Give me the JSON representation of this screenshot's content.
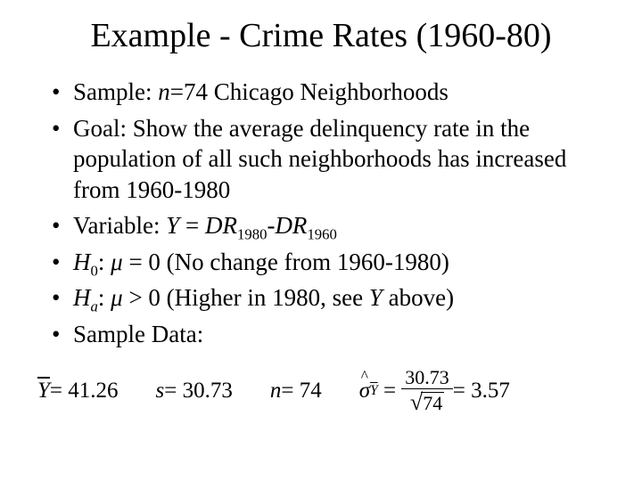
{
  "title": "Example - Crime Rates (1960-80)",
  "bullets": {
    "b1_pre": "Sample: ",
    "b1_var": "n",
    "b1_post": "=74 Chicago Neighborhoods",
    "b2": "Goal: Show the average delinquency rate in the population of all such neighborhoods has increased from 1960-1980",
    "b3_pre": "Variable: ",
    "b3_Y": "Y",
    "b3_eq": " = ",
    "b3_DR1": "DR",
    "b3_sub1": "1980",
    "b3_minus": "-",
    "b3_DR2": "DR",
    "b3_sub2": "1960",
    "b4_H": "H",
    "b4_sub": "0",
    "b4_colon": ": ",
    "b4_mu": "μ",
    "b4_rest": " = 0 (No change from 1960-1980)",
    "b5_H": "H",
    "b5_sub": "a",
    "b5_colon": ": ",
    "b5_mu": "μ",
    "b5_rest": " > 0 (Higher in 1980, see ",
    "b5_Y": "Y",
    "b5_end": " above)",
    "b6": "Sample Data:"
  },
  "equations": {
    "ybar": "Y",
    "ybar_val": " = 41.26",
    "s_var": "s",
    "s_val": " = 30.73",
    "n_var": "n",
    "n_val": " = 74",
    "sigma": "σ",
    "sig_sub": "Y",
    "frac_num": "30.73",
    "rad_val": "74",
    "eq_val": " = 3.57"
  },
  "style": {
    "background_color": "#ffffff",
    "text_color": "#000000",
    "title_fontsize": 38,
    "body_fontsize": 27,
    "eq_fontsize": 25,
    "font_family": "Times New Roman"
  }
}
